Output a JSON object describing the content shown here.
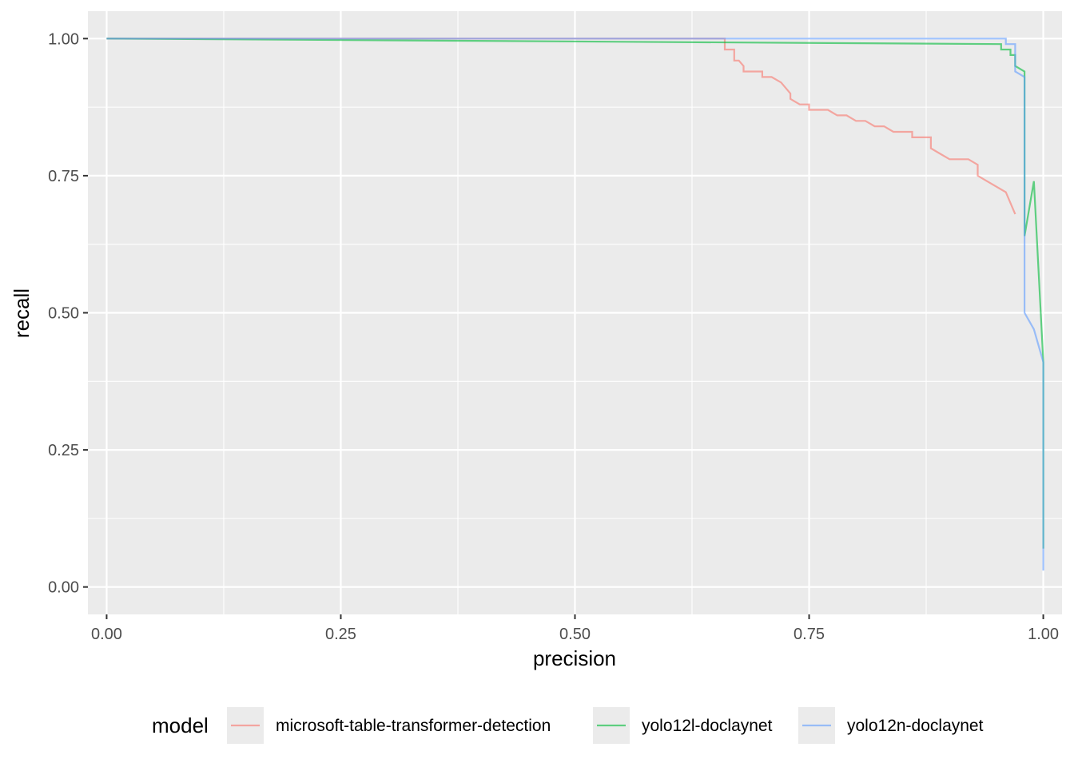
{
  "chart_data": {
    "type": "line",
    "xlabel": "precision",
    "ylabel": "recall",
    "xlim": [
      -0.02,
      1.02
    ],
    "ylim": [
      -0.05,
      1.05
    ],
    "x_ticks": [
      0,
      0.25,
      0.5,
      0.75,
      1
    ],
    "x_tick_labels": [
      "0.00",
      "0.25",
      "0.50",
      "0.75",
      "1.00"
    ],
    "y_ticks": [
      0,
      0.25,
      0.5,
      0.75,
      1
    ],
    "y_tick_labels": [
      "0.00",
      "0.25",
      "0.50",
      "0.75",
      "1.00"
    ],
    "grid": true,
    "legend": {
      "title": "model",
      "position": "bottom"
    },
    "series": [
      {
        "name": "microsoft-table-transformer-detection",
        "color": "#F8766D",
        "points": [
          [
            0,
            1.0
          ],
          [
            0.66,
            1.0
          ],
          [
            0.66,
            0.98
          ],
          [
            0.67,
            0.98
          ],
          [
            0.67,
            0.96
          ],
          [
            0.675,
            0.96
          ],
          [
            0.68,
            0.95
          ],
          [
            0.68,
            0.94
          ],
          [
            0.7,
            0.94
          ],
          [
            0.7,
            0.93
          ],
          [
            0.71,
            0.93
          ],
          [
            0.72,
            0.92
          ],
          [
            0.725,
            0.91
          ],
          [
            0.73,
            0.9
          ],
          [
            0.73,
            0.89
          ],
          [
            0.74,
            0.88
          ],
          [
            0.75,
            0.88
          ],
          [
            0.75,
            0.87
          ],
          [
            0.77,
            0.87
          ],
          [
            0.78,
            0.86
          ],
          [
            0.79,
            0.86
          ],
          [
            0.8,
            0.85
          ],
          [
            0.81,
            0.85
          ],
          [
            0.82,
            0.84
          ],
          [
            0.83,
            0.84
          ],
          [
            0.84,
            0.83
          ],
          [
            0.86,
            0.83
          ],
          [
            0.86,
            0.82
          ],
          [
            0.88,
            0.82
          ],
          [
            0.88,
            0.8
          ],
          [
            0.89,
            0.79
          ],
          [
            0.9,
            0.78
          ],
          [
            0.92,
            0.78
          ],
          [
            0.93,
            0.77
          ],
          [
            0.93,
            0.75
          ],
          [
            0.94,
            0.74
          ],
          [
            0.96,
            0.72
          ],
          [
            0.97,
            0.68
          ]
        ]
      },
      {
        "name": "yolo12l-doclaynet",
        "color": "#00BA38",
        "points": [
          [
            0,
            1.0
          ],
          [
            0.955,
            0.99
          ],
          [
            0.955,
            0.98
          ],
          [
            0.965,
            0.98
          ],
          [
            0.965,
            0.97
          ],
          [
            0.97,
            0.97
          ],
          [
            0.97,
            0.95
          ],
          [
            0.98,
            0.94
          ],
          [
            0.98,
            0.64
          ],
          [
            0.99,
            0.74
          ],
          [
            1.0,
            0.41
          ],
          [
            1.0,
            0.07
          ]
        ]
      },
      {
        "name": "yolo12n-doclaynet",
        "color": "#619CFF",
        "points": [
          [
            0,
            1.0
          ],
          [
            0.96,
            1.0
          ],
          [
            0.96,
            0.99
          ],
          [
            0.97,
            0.99
          ],
          [
            0.97,
            0.94
          ],
          [
            0.98,
            0.93
          ],
          [
            0.98,
            0.5
          ],
          [
            0.99,
            0.47
          ],
          [
            1.0,
            0.41
          ],
          [
            1.0,
            0.03
          ]
        ]
      }
    ]
  }
}
